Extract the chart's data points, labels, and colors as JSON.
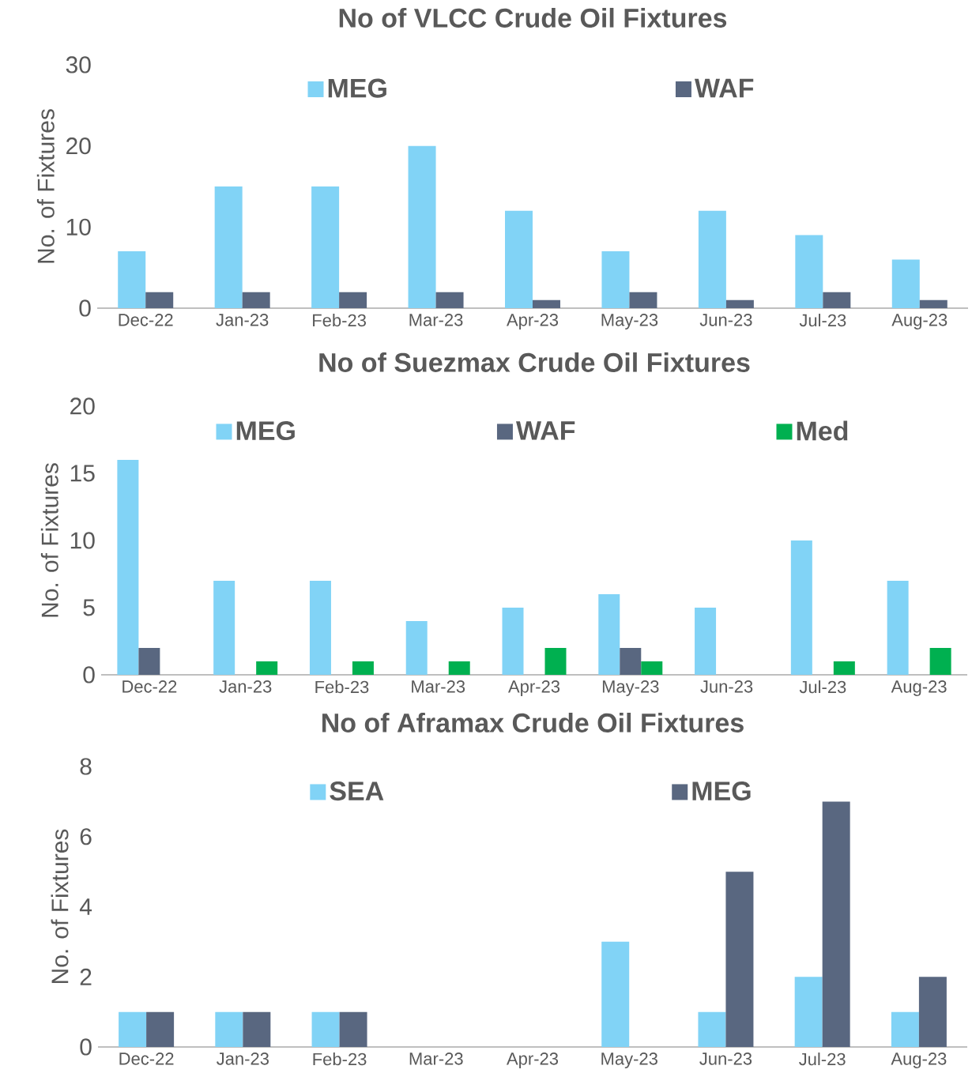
{
  "chart_data": [
    {
      "type": "bar",
      "title": "No of VLCC Crude Oil Fixtures",
      "ylabel": "No. of Fixtures",
      "categories": [
        "Dec-22",
        "Jan-23",
        "Feb-23",
        "Mar-23",
        "Apr-23",
        "May-23",
        "Jun-23",
        "Jul-23",
        "Aug-23"
      ],
      "series": [
        {
          "name": "MEG",
          "color": "#81d3f6",
          "values": [
            7,
            15,
            15,
            20,
            12,
            7,
            12,
            9,
            6
          ]
        },
        {
          "name": "WAF",
          "color": "#596780",
          "values": [
            2,
            2,
            2,
            2,
            1,
            2,
            1,
            2,
            1
          ]
        }
      ],
      "ylim": [
        0,
        30
      ],
      "yticks": [
        0,
        10,
        20,
        30
      ],
      "legend": "top"
    },
    {
      "type": "bar",
      "title": "No of Suezmax Crude Oil Fixtures",
      "ylabel": "No. of Fixtures",
      "categories": [
        "Dec-22",
        "Jan-23",
        "Feb-23",
        "Mar-23",
        "Apr-23",
        "May-23",
        "Jun-23",
        "Jul-23",
        "Aug-23"
      ],
      "series": [
        {
          "name": "MEG",
          "color": "#81d3f6",
          "values": [
            16,
            7,
            7,
            4,
            5,
            6,
            5,
            10,
            7
          ]
        },
        {
          "name": "WAF",
          "color": "#596780",
          "values": [
            2,
            0,
            0,
            0,
            0,
            2,
            0,
            0,
            0
          ]
        },
        {
          "name": "Med",
          "color": "#00b050",
          "values": [
            0,
            1,
            1,
            1,
            2,
            1,
            0,
            1,
            2
          ]
        }
      ],
      "ylim": [
        0,
        20
      ],
      "yticks": [
        0,
        5,
        10,
        15,
        20
      ],
      "legend": "top"
    },
    {
      "type": "bar",
      "title": "No of Aframax Crude Oil Fixtures",
      "ylabel": "No. of Fixtures",
      "categories": [
        "Dec-22",
        "Jan-23",
        "Feb-23",
        "Mar-23",
        "Apr-23",
        "May-23",
        "Jun-23",
        "Jul-23",
        "Aug-23"
      ],
      "series": [
        {
          "name": "SEA",
          "color": "#81d3f6",
          "values": [
            1,
            1,
            1,
            0,
            0,
            3,
            1,
            2,
            1
          ]
        },
        {
          "name": "MEG",
          "color": "#596780",
          "values": [
            1,
            1,
            1,
            0,
            0,
            0,
            5,
            7,
            2
          ]
        }
      ],
      "ylim": [
        0,
        8
      ],
      "yticks": [
        0,
        2,
        4,
        6,
        8
      ],
      "legend": "top"
    }
  ]
}
